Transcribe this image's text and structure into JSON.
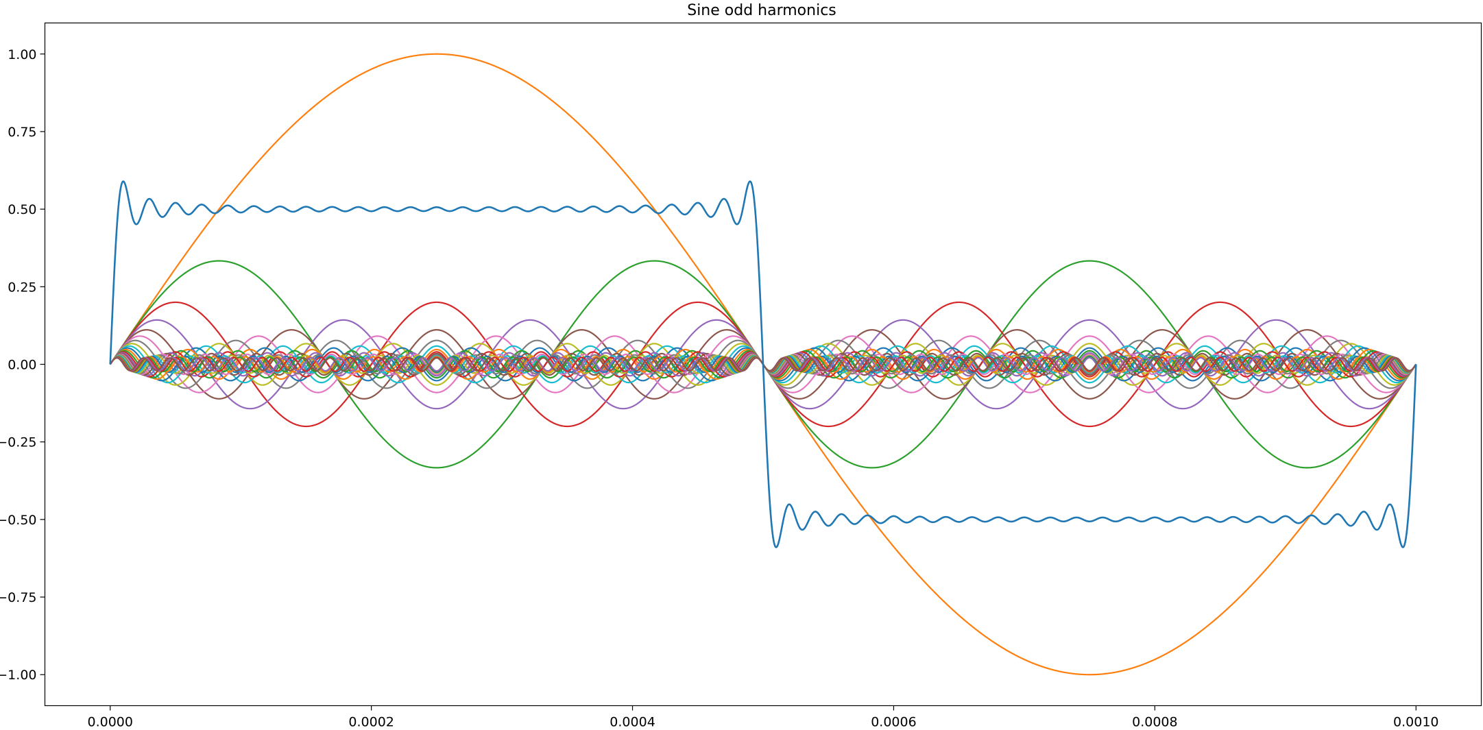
{
  "chart_data": {
    "type": "line",
    "title": "Sine odd harmonics",
    "xlabel": "",
    "ylabel": "",
    "xlim": [
      -5e-05,
      0.00105
    ],
    "ylim": [
      -1.1,
      1.1
    ],
    "grid": false,
    "legend": "none",
    "x_ticks": [
      "0.0000",
      "0.0002",
      "0.0004",
      "0.0006",
      "0.0008",
      "0.0010"
    ],
    "y_ticks": [
      "1.00",
      "0.75",
      "0.50",
      "0.25",
      "0.00",
      "−0.25",
      "−0.50",
      "−0.75",
      "−1.00"
    ],
    "waveform": {
      "fundamental_frequency_hz": 1000,
      "x_start": 0.0,
      "x_end": 0.001,
      "harmonic_orders": [
        1,
        3,
        5,
        7,
        9,
        11,
        13,
        15,
        17,
        19,
        21,
        23,
        25,
        27,
        29,
        31,
        33,
        35,
        37,
        39,
        41,
        43,
        45,
        47,
        49
      ],
      "harmonic_amplitude": "1/n",
      "sum_scale": 0.6366,
      "sum_series_color": "#1f77b4"
    },
    "colors": [
      "#ff7f0e",
      "#2ca02c",
      "#d62728",
      "#9467bd",
      "#8c564b",
      "#e377c2",
      "#7f7f7f",
      "#bcbd22",
      "#17becf",
      "#1f77b4"
    ]
  }
}
